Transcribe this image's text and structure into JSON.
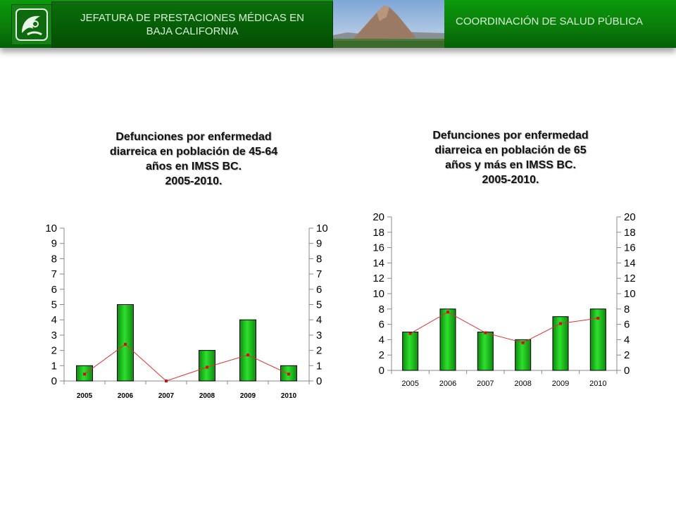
{
  "header": {
    "left_title_line1": "JEFATURA DE PRESTACIONES MÉDICAS EN",
    "left_title_line2": "BAJA CALIFORNIA",
    "right_title": "COORDINACIÓN DE SALUD PÚBLICA",
    "logo_icon": "imss-eagle-logo-icon",
    "photo": "mountain-landscape-photo",
    "brand_color": "#0a7d0a"
  },
  "chart_data": [
    {
      "type": "bar",
      "title_lines": [
        "Defunciones por enfermedad",
        "diarreica en población de 45-64",
        "años en IMSS BC.",
        "2005-2010."
      ],
      "categories": [
        "2005",
        "2006",
        "2007",
        "2008",
        "2009",
        "2010"
      ],
      "series": [
        {
          "type": "bar",
          "values": [
            1,
            5,
            0,
            2,
            4,
            1
          ],
          "color": "#19c219"
        },
        {
          "type": "line",
          "values": [
            0.45,
            2.4,
            0,
            0.9,
            1.7,
            0.45
          ],
          "color": "#e53030"
        }
      ],
      "ylim": [
        0,
        10
      ],
      "yticks": [
        0,
        1,
        2,
        3,
        4,
        5,
        6,
        7,
        8,
        9,
        10
      ],
      "y2lim": [
        0,
        10
      ],
      "y2ticks": [
        0,
        1,
        2,
        3,
        4,
        5,
        6,
        7,
        8,
        9,
        10
      ],
      "xlabel": "",
      "ylabel": "",
      "grid": false
    },
    {
      "type": "bar",
      "title_lines": [
        "Defunciones por enfermedad",
        "diarreica en población de 65",
        "años y más en IMSS BC.",
        "2005-2010."
      ],
      "categories": [
        "2005",
        "2006",
        "2007",
        "2008",
        "2009",
        "2010"
      ],
      "series": [
        {
          "type": "bar",
          "values": [
            5,
            8,
            5,
            4,
            7,
            8
          ],
          "color": "#19c219"
        },
        {
          "type": "line",
          "values": [
            4.8,
            7.6,
            4.9,
            3.6,
            6.1,
            6.8
          ],
          "color": "#e53030"
        }
      ],
      "ylim": [
        0,
        20
      ],
      "yticks": [
        0,
        2,
        4,
        6,
        8,
        10,
        12,
        14,
        16,
        18,
        20
      ],
      "y2lim": [
        0,
        20
      ],
      "y2ticks": [
        0,
        2,
        4,
        6,
        8,
        10,
        12,
        14,
        16,
        18,
        20
      ],
      "xlabel": "",
      "ylabel": "",
      "grid": false
    }
  ]
}
